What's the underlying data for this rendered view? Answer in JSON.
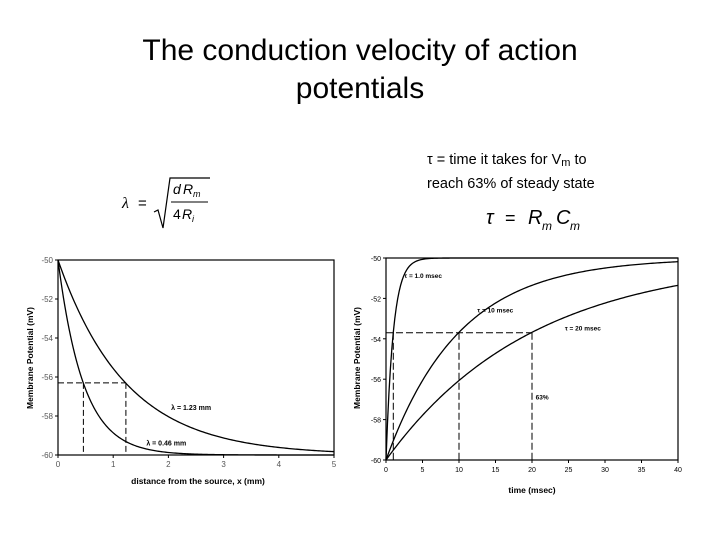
{
  "slide": {
    "title_line1": "The conduction velocity of action",
    "title_line2": "potentials",
    "tau_note_prefix": "τ = time it takes for V",
    "tau_note_sub": "m",
    "tau_note_suffix": " to",
    "tau_note_line2": "reach 63% of steady state"
  },
  "equations": {
    "lambda": {
      "lhs": "λ",
      "eq": "=",
      "num_d": "d",
      "num_R": "R",
      "num_sub": "m",
      "den_4": "4",
      "den_R": "R",
      "den_sub": "i"
    },
    "tau": {
      "lhs": "τ",
      "eq": "=",
      "R": "R",
      "R_sub": "m",
      "C": "C",
      "C_sub": "m"
    }
  },
  "chart_data": [
    {
      "type": "line",
      "xlabel": "distance from the source, x (mm)",
      "ylabel": "Membrane Potential (mV)",
      "xlim": [
        0,
        5
      ],
      "ylim": [
        -60,
        -50
      ],
      "x_ticks": [
        "0",
        "1",
        "2",
        "3",
        "4",
        "5"
      ],
      "y_ticks": [
        "-50",
        "-52",
        "-54",
        "-56",
        "-58",
        "-60"
      ],
      "series": [
        {
          "name": "λ = 1.23 mm",
          "lambda": 1.23,
          "x": [
            0,
            0.5,
            1,
            1.23,
            1.5,
            2,
            2.5,
            3,
            3.5,
            4,
            4.5,
            5
          ],
          "y": [
            -50,
            -53.3,
            -55.6,
            -56.3,
            -57.0,
            -58.0,
            -58.7,
            -59.1,
            -59.4,
            -59.6,
            -59.7,
            -59.8
          ]
        },
        {
          "name": "λ = 0.46 mm",
          "lambda": 0.46,
          "x": [
            0,
            0.25,
            0.46,
            0.75,
            1,
            1.5,
            2,
            2.5,
            3,
            3.5,
            4,
            4.5,
            5
          ],
          "y": [
            -50,
            -54.2,
            -56.3,
            -58.0,
            -58.9,
            -59.6,
            -59.9,
            -60,
            -60,
            -60,
            -60,
            -60,
            -60
          ]
        }
      ],
      "annotations": [
        {
          "label": "λ = 1.23 mm",
          "x": 2.05,
          "y": -57.7
        },
        {
          "label": "λ = 0.46 mm",
          "x": 1.6,
          "y": -59.5
        }
      ],
      "guides": {
        "y": -56.3,
        "x": [
          0.46,
          1.23
        ]
      }
    },
    {
      "type": "line",
      "xlabel": "time (msec)",
      "ylabel": "Membrane Potential (mV)",
      "xlim": [
        0,
        40
      ],
      "ylim": [
        -60,
        -50
      ],
      "x_ticks": [
        "0",
        "5",
        "10",
        "15",
        "20",
        "25",
        "30",
        "35",
        "40"
      ],
      "y_ticks": [
        "-50",
        "-52",
        "-54",
        "-56",
        "-58",
        "-60"
      ],
      "series": [
        {
          "name": "τ = 1.0 msec",
          "tau": 1.0,
          "x": [
            0,
            0.5,
            1,
            2,
            3,
            5,
            10,
            20,
            40
          ],
          "y": [
            -60,
            -56.1,
            -53.7,
            -51.4,
            -50.5,
            -50.1,
            -50,
            -50,
            -50
          ]
        },
        {
          "name": "τ = 10 msec",
          "tau": 10,
          "x": [
            0,
            5,
            10,
            15,
            20,
            25,
            30,
            35,
            40
          ],
          "y": [
            -60,
            -56.1,
            -53.7,
            -52.2,
            -51.4,
            -50.8,
            -50.5,
            -50.3,
            -50.2
          ]
        },
        {
          "name": "τ = 20 msec",
          "tau": 20,
          "x": [
            0,
            5,
            10,
            15,
            20,
            25,
            30,
            35,
            40
          ],
          "y": [
            -60,
            -57.8,
            -56.1,
            -54.7,
            -53.7,
            -52.9,
            -52.2,
            -51.7,
            -51.4
          ]
        }
      ],
      "annotations": [
        {
          "label": "τ = 1.0 msec",
          "x": 2.5,
          "y": -51.0
        },
        {
          "label": "τ = 10 msec",
          "x": 12.5,
          "y": -52.7
        },
        {
          "label": "τ = 20 msec",
          "x": 24.5,
          "y": -53.6
        },
        {
          "label": "63%",
          "x": 20.5,
          "y": -57.0
        }
      ],
      "guides": {
        "y": -53.7,
        "x": [
          1,
          10,
          20
        ]
      }
    }
  ]
}
